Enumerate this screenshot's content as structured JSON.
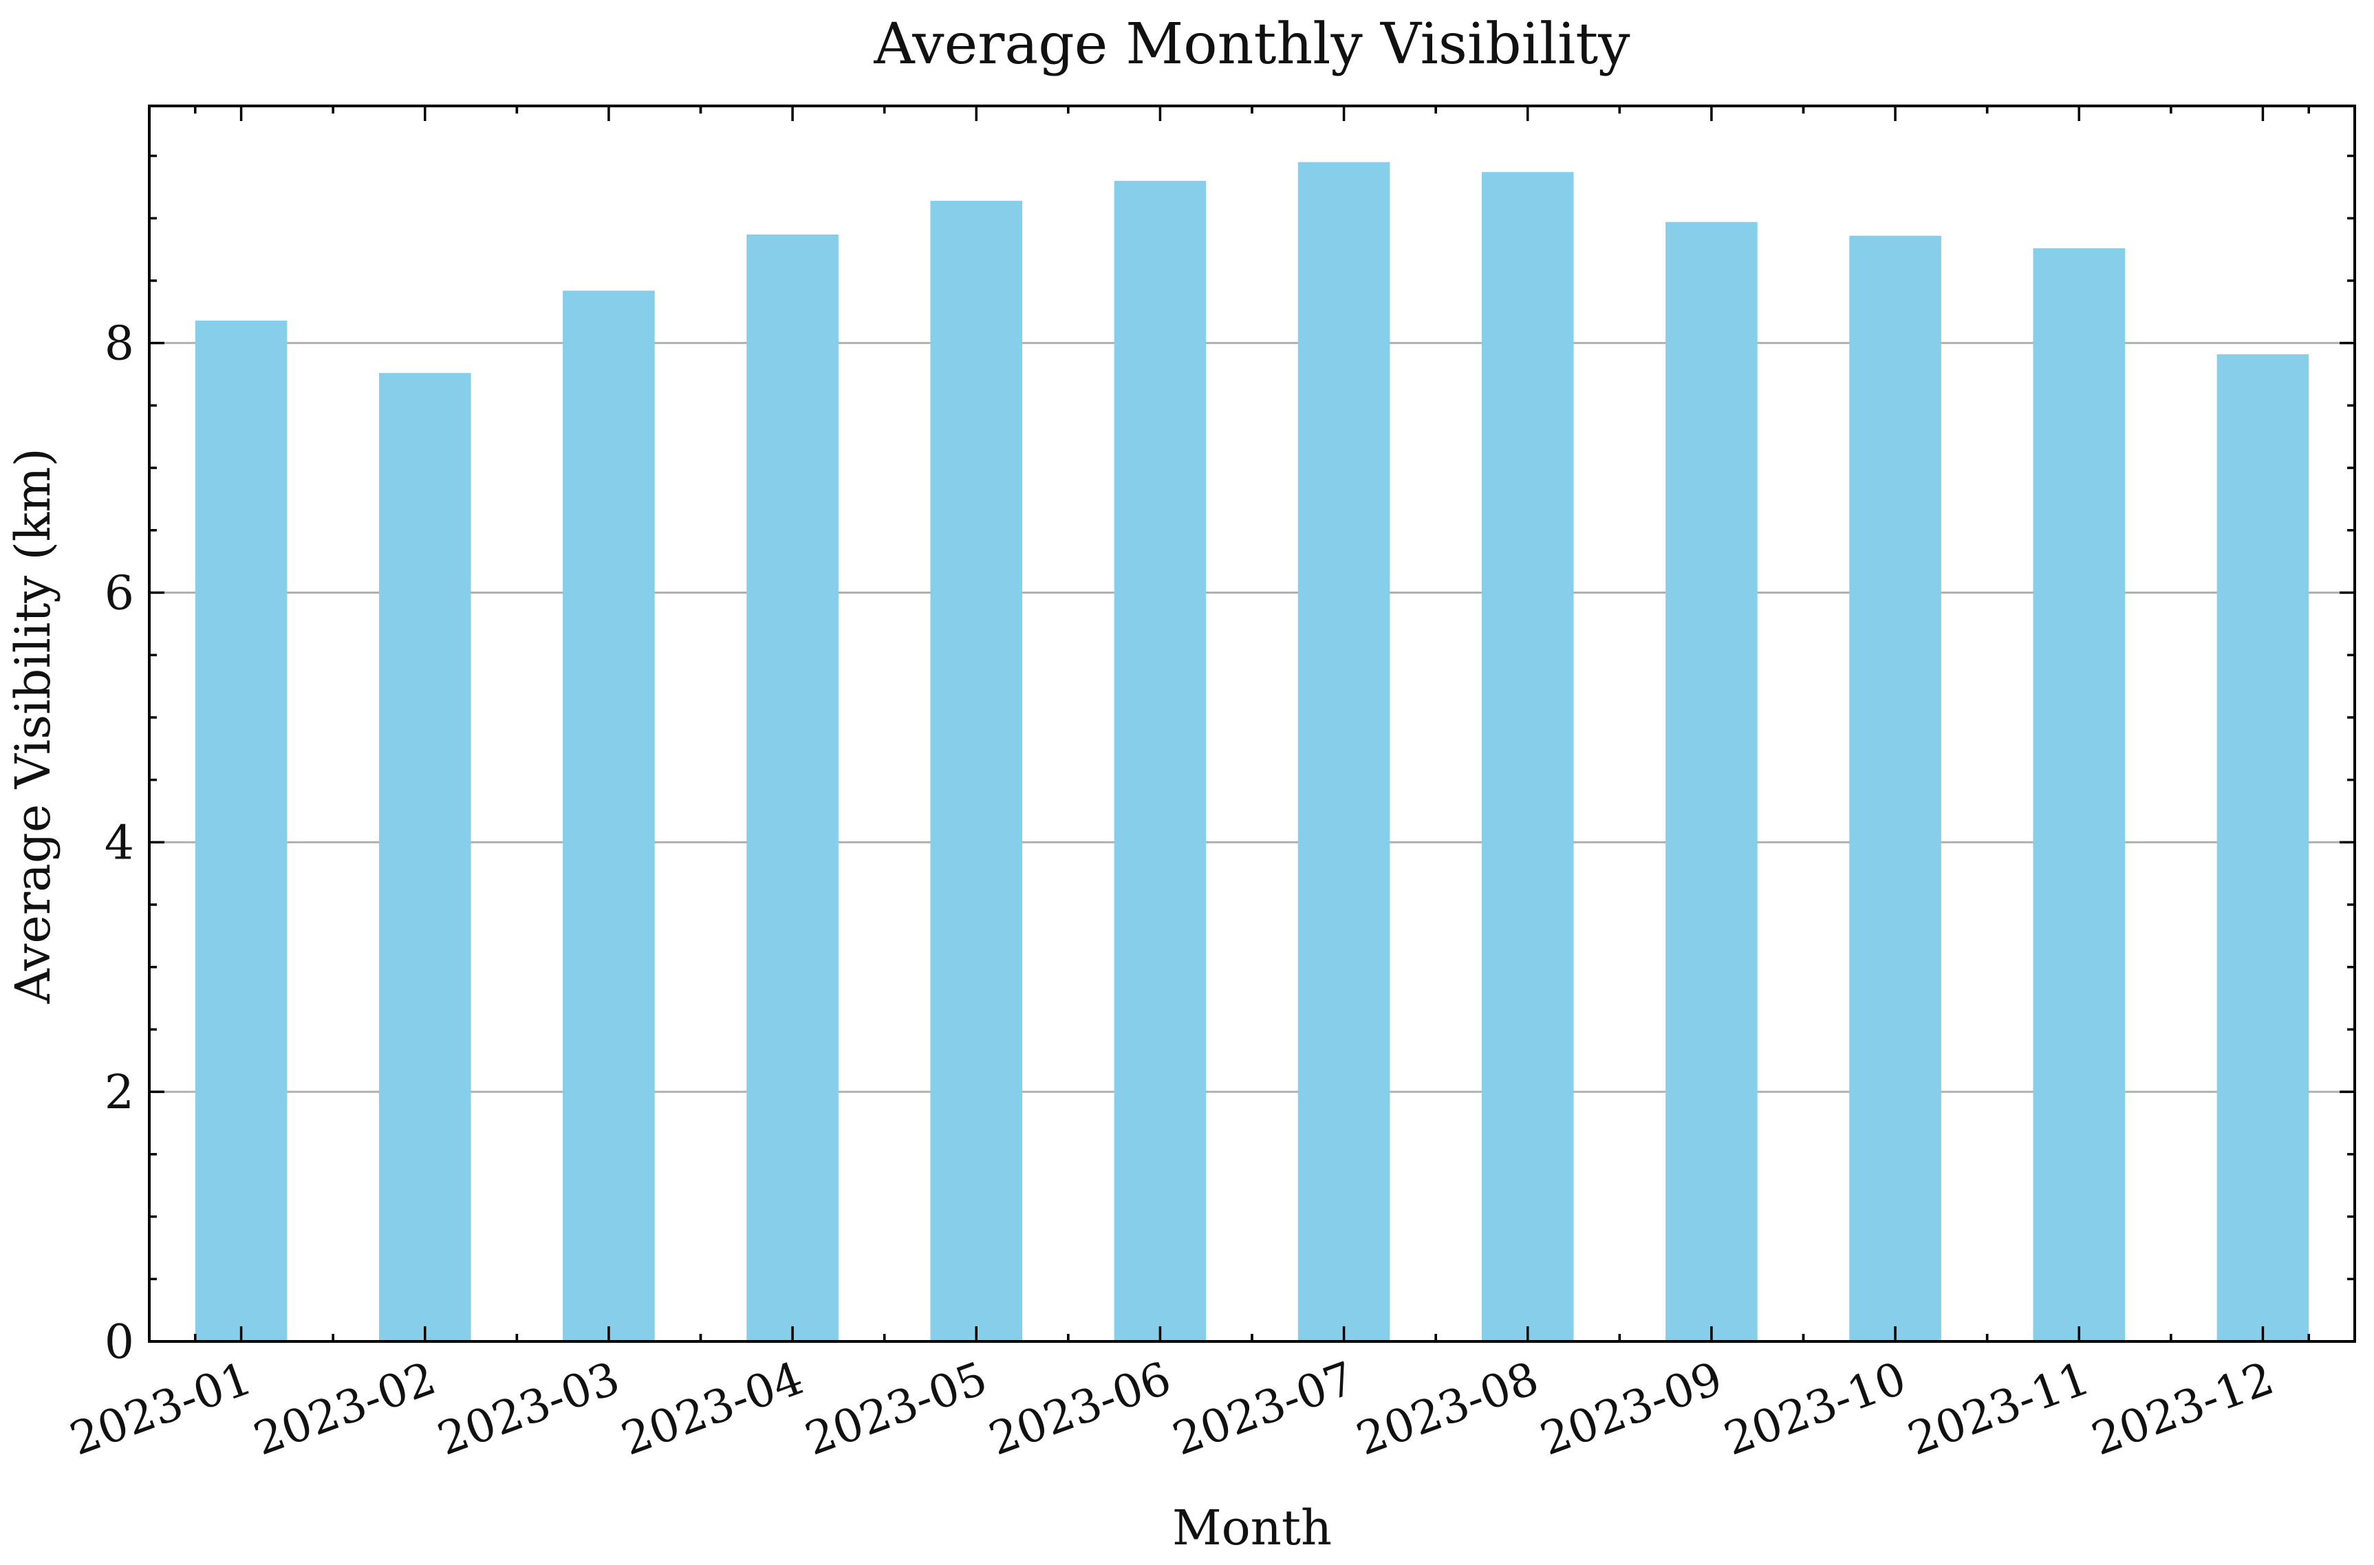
{
  "chart_data": {
    "type": "bar",
    "title": "Average Monthly Visibility",
    "xlabel": "Month",
    "ylabel": "Average Visibility (km)",
    "categories": [
      "2023-01",
      "2023-02",
      "2023-03",
      "2023-04",
      "2023-05",
      "2023-06",
      "2023-07",
      "2023-08",
      "2023-09",
      "2023-10",
      "2023-11",
      "2023-12"
    ],
    "values": [
      8.18,
      7.76,
      8.42,
      8.87,
      9.14,
      9.3,
      9.45,
      9.37,
      8.97,
      8.86,
      8.76,
      7.91
    ],
    "ylim": [
      0,
      9.9
    ],
    "yticks": [
      0,
      2,
      4,
      6,
      8
    ],
    "grid": "horizontal",
    "bar_color": "#87CEEB",
    "grid_color": "#b0b0b0"
  }
}
